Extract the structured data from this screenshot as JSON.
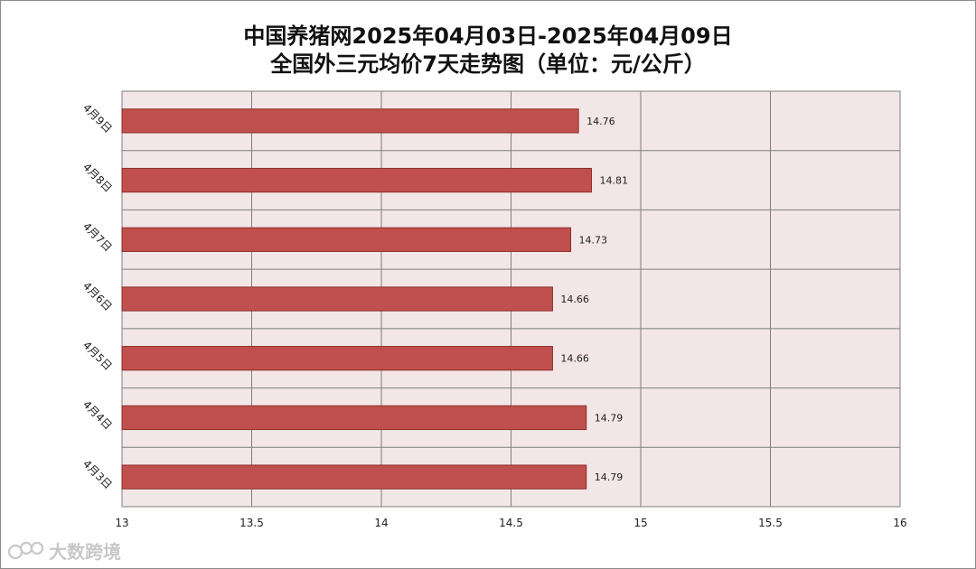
{
  "chart_data": {
    "type": "bar",
    "orientation": "horizontal",
    "title": [
      "中国养猪网2025年04月03日-2025年04月09日",
      "全国外三元均价7天走势图（单位：元/公斤）"
    ],
    "categories": [
      "4月9日",
      "4月8日",
      "4月7日",
      "4月6日",
      "4月5日",
      "4月4日",
      "4月3日"
    ],
    "values": [
      14.76,
      14.81,
      14.73,
      14.66,
      14.66,
      14.79,
      14.79
    ],
    "data_labels": [
      "14.76",
      "14.81",
      "14.73",
      "14.66",
      "14.66",
      "14.79",
      "14.79"
    ],
    "xlim": [
      13,
      16
    ],
    "x_ticks": [
      13,
      13.5,
      14,
      14.5,
      15,
      15.5,
      16
    ],
    "x_tick_labels": [
      "13",
      "13.5",
      "14",
      "14.5",
      "15",
      "15.5",
      "16"
    ],
    "grid": true,
    "legend": "none",
    "colors": {
      "bar_fill": "#c0504d",
      "bar_stroke": "#8c2e2b",
      "plot_background": "#f2e6e6",
      "grid": "#7f7f7f"
    }
  },
  "watermark": "大数跨境"
}
